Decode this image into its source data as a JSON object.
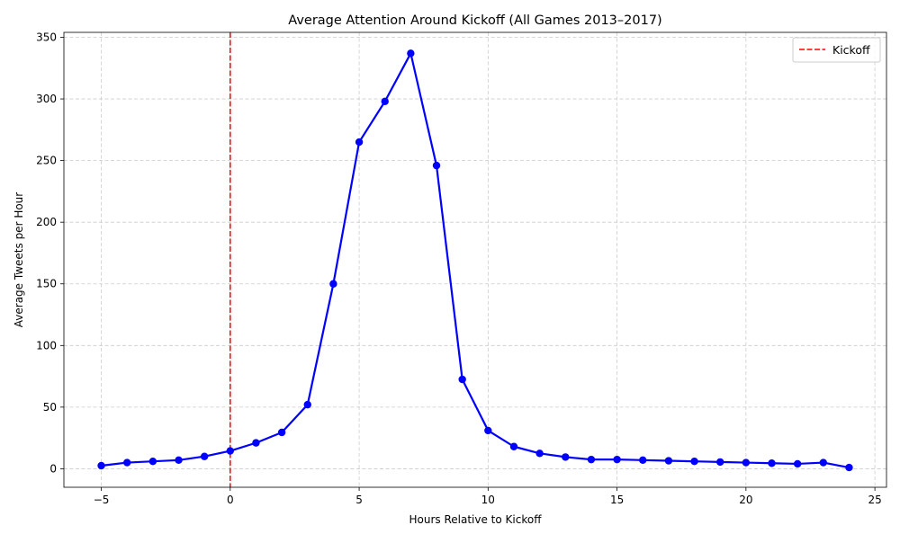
{
  "chart_data": {
    "type": "line",
    "title": "Average Attention Around Kickoff (All Games 2013–2017)",
    "xlabel": "Hours Relative to Kickoff",
    "ylabel": "Average Tweets per Hour",
    "xlim": [
      -6.45,
      25.45
    ],
    "ylim": [
      -15,
      354
    ],
    "x_ticks": [
      -5,
      0,
      5,
      10,
      15,
      20,
      25
    ],
    "x_tick_labels": [
      "−5",
      "0",
      "5",
      "10",
      "15",
      "20",
      "25"
    ],
    "y_ticks": [
      0,
      50,
      100,
      150,
      200,
      250,
      300,
      350
    ],
    "y_tick_labels": [
      "0",
      "50",
      "100",
      "150",
      "200",
      "250",
      "300",
      "350"
    ],
    "grid": true,
    "grid_style": "dashed",
    "legend": {
      "position": "top-right"
    },
    "colors": {
      "series": "#0000ff",
      "kickoff": "#ff0000",
      "grid": "#cccccc"
    },
    "series": [
      {
        "x": [
          -5,
          -4,
          -3,
          -2,
          -1,
          0,
          1,
          2,
          3,
          4,
          5,
          6,
          7,
          8,
          9,
          10,
          11,
          12,
          13,
          14,
          15,
          16,
          17,
          18,
          19,
          20,
          21,
          22,
          23,
          24
        ],
        "values": [
          2.5,
          5,
          6,
          7,
          10,
          14.5,
          21,
          29.5,
          52,
          150,
          265,
          298,
          337,
          246,
          72.5,
          31,
          18,
          12.5,
          9.5,
          7.5,
          7.5,
          7,
          6.5,
          6,
          5.5,
          5,
          4.5,
          4,
          5,
          1
        ],
        "color": "#0000ff",
        "marker": "circle"
      }
    ],
    "reference_lines": [
      {
        "orientation": "vertical",
        "x": 0,
        "label": "Kickoff",
        "color": "#ff0000",
        "style": "dashed"
      }
    ]
  }
}
